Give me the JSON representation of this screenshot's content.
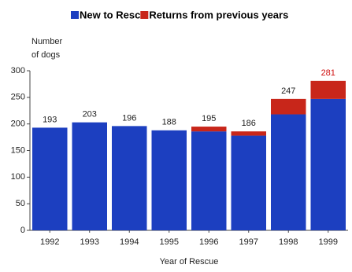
{
  "chart_data": {
    "type": "stacked-bar",
    "ylabel_lines": [
      "Number",
      "of dogs"
    ],
    "xlabel": "Year of Rescue",
    "categories": [
      "1992",
      "1993",
      "1994",
      "1995",
      "1996",
      "1997",
      "1998",
      "1999"
    ],
    "series": [
      {
        "name": "New to Resc",
        "color": "#1c3fc0",
        "values": [
          193,
          203,
          196,
          188,
          186,
          178,
          218,
          247
        ]
      },
      {
        "name": "Returns from previous years",
        "color": "#c8261a",
        "values": [
          0,
          0,
          0,
          0,
          9,
          8,
          29,
          34
        ]
      }
    ],
    "totals": [
      193,
      203,
      196,
      188,
      195,
      186,
      247,
      281
    ],
    "highlight_total": {
      "index": 7,
      "color": "#d01010"
    },
    "ylim": [
      0,
      300
    ],
    "yticks": [
      0,
      50,
      100,
      150,
      200,
      250,
      300
    ]
  }
}
